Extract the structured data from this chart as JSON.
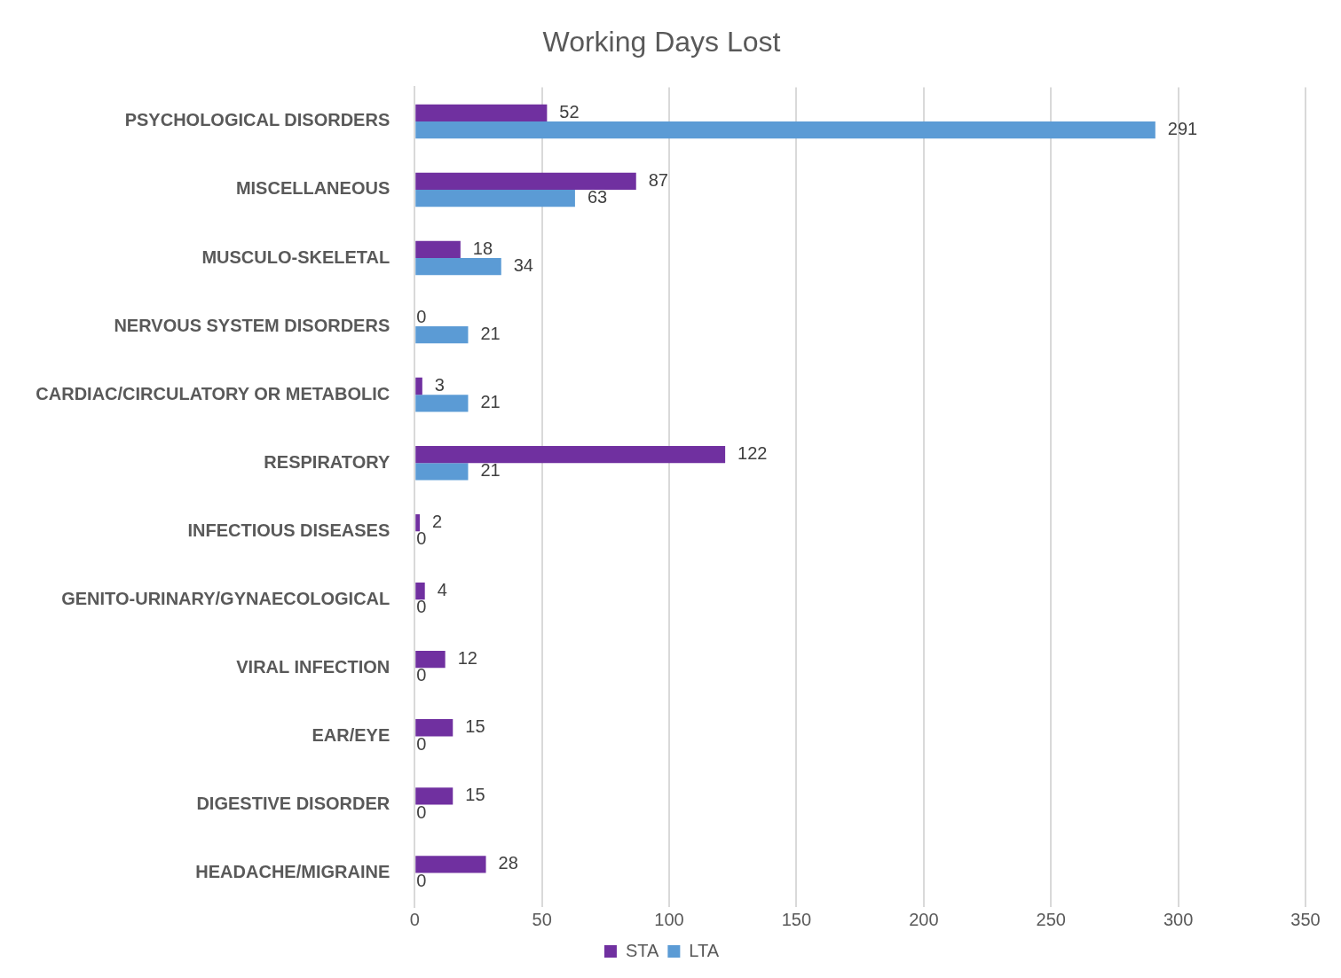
{
  "chart_data": {
    "type": "bar",
    "orientation": "horizontal",
    "title": "Working Days Lost",
    "categories": [
      "PSYCHOLOGICAL DISORDERS",
      "MISCELLANEOUS",
      "MUSCULO-SKELETAL",
      "NERVOUS SYSTEM DISORDERS",
      "CARDIAC/CIRCULATORY OR METABOLIC",
      "RESPIRATORY",
      "INFECTIOUS DISEASES",
      "GENITO-URINARY/GYNAECOLOGICAL",
      "VIRAL INFECTION",
      "EAR/EYE",
      "DIGESTIVE DISORDER",
      "HEADACHE/MIGRAINE"
    ],
    "series": [
      {
        "name": "STA",
        "color": "#7030a0",
        "values": [
          52,
          87,
          18,
          0,
          3,
          122,
          2,
          4,
          12,
          15,
          15,
          28
        ]
      },
      {
        "name": "LTA",
        "color": "#5b9bd5",
        "values": [
          291,
          63,
          34,
          21,
          21,
          21,
          0,
          0,
          0,
          0,
          0,
          0
        ]
      }
    ],
    "xlim": [
      0,
      350
    ],
    "xticks": [
      0,
      50,
      100,
      150,
      200,
      250,
      300,
      350
    ],
    "grid": "x",
    "legend": "bottom",
    "data_labels": true
  }
}
